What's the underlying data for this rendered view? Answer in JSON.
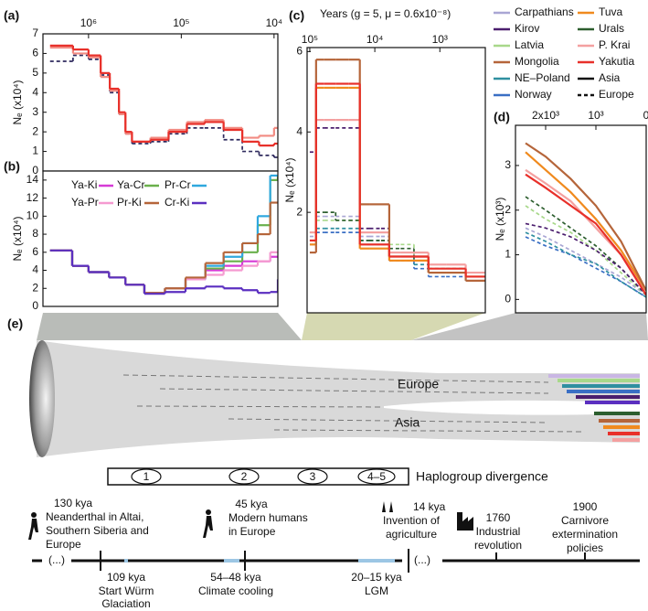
{
  "chart_data": [
    {
      "type": "line",
      "label": "(a)",
      "ylabel": "Nₑ (x10⁴)",
      "xscale": "log",
      "step": true,
      "xlim": [
        3100000,
        9100
      ],
      "xticks": [
        {
          "value": 1000000,
          "label": "10⁶"
        },
        {
          "value": 100000,
          "label": "10⁵"
        },
        {
          "value": 10000,
          "label": "10⁴"
        }
      ],
      "ylim": [
        0,
        7
      ],
      "yticks": [
        0,
        1,
        2,
        3,
        4,
        5,
        6,
        7
      ],
      "x": [
        2600000,
        1470000,
        1000000,
        740000,
        590000,
        470000,
        400000,
        340000,
        215000,
        137000,
        87000,
        56000,
        35000,
        22000,
        14500,
        10000
      ],
      "series": [
        {
          "color": "#2f2a5e",
          "dash": true,
          "values": [
            5.6,
            5.9,
            5.7,
            4.9,
            4.0,
            2.9,
            1.9,
            1.4,
            1.5,
            1.9,
            2.2,
            2.2,
            1.6,
            1.0,
            0.8,
            0.7
          ]
        },
        {
          "color": "#f28b82",
          "dash": false,
          "values": [
            6.3,
            6.0,
            5.8,
            4.8,
            4.1,
            2.9,
            1.9,
            1.5,
            1.7,
            2.1,
            2.5,
            2.6,
            2.2,
            1.7,
            1.8,
            2.2
          ]
        },
        {
          "color": "#e8302a",
          "dash": false,
          "values": [
            6.4,
            6.2,
            5.9,
            5.0,
            4.2,
            3.0,
            2.0,
            1.5,
            1.6,
            2.0,
            2.4,
            2.5,
            2.1,
            1.5,
            1.3,
            1.4
          ]
        }
      ]
    },
    {
      "type": "line",
      "label": "(b)",
      "ylabel": "Nₑ (x10⁴)",
      "xscale": "log",
      "step": true,
      "xlim": [
        3100000,
        9100
      ],
      "ylim": [
        0,
        15
      ],
      "yticks": [
        0,
        2,
        4,
        6,
        8,
        10,
        12,
        14
      ],
      "x": [
        2600000,
        1500000,
        1000000,
        600000,
        400000,
        250000,
        150000,
        90000,
        55000,
        35000,
        22000,
        15000,
        11000,
        9100
      ],
      "series": [
        {
          "name": "Ya-Ki",
          "color": "#d63ad6",
          "dash": false,
          "values": [
            6.2,
            4.5,
            3.8,
            3.2,
            2.4,
            1.5,
            2.0,
            3.0,
            4.0,
            4.5,
            5.0,
            5.0,
            5.5,
            5.5
          ]
        },
        {
          "name": "Ya-Cr",
          "color": "#6ab04c",
          "dash": false,
          "values": [
            6.2,
            4.5,
            3.8,
            3.2,
            2.4,
            1.5,
            2.0,
            3.0,
            4.2,
            5.0,
            6.0,
            9.0,
            14.0,
            14.5
          ]
        },
        {
          "name": "Pr-Cr",
          "color": "#2fa8de",
          "dash": false,
          "values": [
            6.2,
            4.5,
            3.8,
            3.2,
            2.4,
            1.5,
            2.0,
            3.0,
            4.5,
            5.5,
            7.0,
            10.0,
            14.5,
            14.5
          ]
        },
        {
          "name": "Ya-Pr",
          "color": "#f59ad0",
          "dash": false,
          "values": [
            6.2,
            4.5,
            3.8,
            3.2,
            2.4,
            1.5,
            2.0,
            3.0,
            3.5,
            4.0,
            4.5,
            5.0,
            6.0,
            6.0
          ]
        },
        {
          "name": "Pr-Ki",
          "color": "#b5653a",
          "dash": false,
          "values": [
            6.2,
            4.5,
            3.8,
            3.2,
            2.4,
            1.5,
            2.0,
            3.2,
            4.8,
            6.0,
            7.0,
            8.0,
            11.5,
            11.5
          ]
        },
        {
          "name": "Cr-Ki",
          "color": "#5b2fc0",
          "dash": false,
          "values": [
            6.2,
            4.5,
            3.8,
            3.2,
            2.4,
            1.4,
            1.6,
            2.0,
            2.2,
            2.0,
            1.8,
            1.5,
            1.6,
            3.0
          ]
        }
      ]
    },
    {
      "type": "line",
      "label": "(c)",
      "xlabel": "Years (g = 5, μ = 0.6x10⁻⁸)",
      "ylabel": "Nₑ (x10⁴)",
      "xscale": "log",
      "step": true,
      "xlim": [
        110000,
        200
      ],
      "xticks": [
        {
          "value": 100000,
          "label": "10⁵"
        },
        {
          "value": 10000,
          "label": "10⁴"
        },
        {
          "value": 1000,
          "label": "10³"
        }
      ],
      "ylim": [
        -0.5,
        6.1
      ],
      "yticks": [
        2,
        4,
        6
      ],
      "x": [
        100000,
        80000,
        60000,
        40000,
        25000,
        17000,
        12000,
        8000,
        6000,
        4000,
        2500,
        1500,
        800,
        400,
        200
      ],
      "series": [
        {
          "color": "#a9a6d4",
          "dash": true,
          "values": [
            1.4,
            1.9,
            1.9,
            1.9,
            1.9,
            1.4,
            1.4,
            1.4,
            1.0,
            1.0,
            0.8,
            0.6,
            0.6,
            0.4,
            0.4
          ]
        },
        {
          "color": "#3a6fc4",
          "dash": true,
          "values": [
            1.2,
            1.5,
            1.5,
            1.5,
            1.5,
            1.2,
            1.2,
            1.2,
            0.8,
            0.8,
            0.6,
            0.4,
            0.4,
            0.3,
            0.3
          ]
        },
        {
          "color": "#2f8fa0",
          "dash": true,
          "values": [
            1.3,
            1.6,
            1.6,
            1.6,
            1.6,
            1.3,
            1.3,
            1.3,
            0.9,
            0.9,
            0.7,
            0.5,
            0.5,
            0.3,
            0.3
          ]
        },
        {
          "color": "#a8d88a",
          "dash": true,
          "values": [
            1.5,
            1.8,
            1.8,
            1.8,
            1.8,
            1.5,
            1.5,
            1.5,
            1.2,
            1.2,
            0.9,
            0.6,
            0.6,
            0.4,
            0.4
          ]
        },
        {
          "color": "#2c5e2e",
          "dash": true,
          "values": [
            1.5,
            2.0,
            2.0,
            1.8,
            1.8,
            1.3,
            1.3,
            1.3,
            1.1,
            1.1,
            0.8,
            0.6,
            0.6,
            0.4,
            0.4
          ]
        },
        {
          "color": "#4b1e6e",
          "dash": true,
          "values": [
            3.5,
            4.1,
            4.1,
            4.1,
            4.1,
            1.6,
            1.6,
            1.6,
            0.8,
            0.8,
            0.8,
            0.5,
            0.5,
            0.4,
            0.4
          ]
        },
        {
          "color": "#f4a0a0",
          "dash": false,
          "values": [
            1.5,
            4.3,
            4.3,
            4.3,
            4.3,
            1.5,
            1.5,
            1.5,
            1.0,
            1.0,
            1.0,
            0.7,
            0.7,
            0.5,
            0.5
          ]
        },
        {
          "color": "#f08a1e",
          "dash": false,
          "values": [
            1.2,
            5.1,
            5.1,
            5.1,
            5.1,
            1.1,
            1.1,
            1.1,
            0.8,
            0.8,
            0.8,
            0.5,
            0.5,
            0.4,
            0.4
          ]
        },
        {
          "color": "#b5653a",
          "dash": false,
          "values": [
            1.0,
            5.8,
            5.8,
            5.8,
            5.8,
            2.2,
            2.2,
            2.2,
            0.9,
            0.9,
            0.9,
            0.5,
            0.5,
            0.3,
            0.3
          ]
        },
        {
          "color": "#e8302a",
          "dash": false,
          "values": [
            1.3,
            5.2,
            5.2,
            5.2,
            5.2,
            1.2,
            1.2,
            1.2,
            0.9,
            0.9,
            0.9,
            0.6,
            0.6,
            0.4,
            0.4
          ]
        }
      ]
    },
    {
      "type": "line",
      "label": "(d)",
      "ylabel": "Nₑ (x10³)",
      "xscale": "linear",
      "step": false,
      "xlim": [
        2600,
        0
      ],
      "xticks": [
        {
          "value": 2000,
          "label": "2x10³"
        },
        {
          "value": 1000,
          "label": "10³"
        },
        0
      ],
      "ylim": [
        -0.3,
        3.9
      ],
      "yticks": [
        0,
        1,
        2,
        3
      ],
      "x": [
        2400,
        2000,
        1500,
        1000,
        500,
        0
      ],
      "series": [
        {
          "color": "#a9a6d4",
          "dash": true,
          "values": [
            1.6,
            1.4,
            1.1,
            0.8,
            0.5,
            0.1
          ]
        },
        {
          "color": "#3a6fc4",
          "dash": true,
          "values": [
            1.4,
            1.2,
            1.0,
            0.7,
            0.4,
            0.05
          ]
        },
        {
          "color": "#2f8fa0",
          "dash": true,
          "values": [
            1.5,
            1.3,
            1.0,
            0.8,
            0.4,
            0.05
          ]
        },
        {
          "color": "#a8d88a",
          "dash": true,
          "values": [
            2.1,
            1.8,
            1.5,
            1.1,
            0.6,
            0.1
          ]
        },
        {
          "color": "#2c5e2e",
          "dash": true,
          "values": [
            2.3,
            2.0,
            1.6,
            1.2,
            0.7,
            0.1
          ]
        },
        {
          "color": "#4b1e6e",
          "dash": true,
          "values": [
            1.7,
            1.6,
            1.4,
            1.1,
            0.7,
            0.1
          ]
        },
        {
          "color": "#f4a0a0",
          "dash": false,
          "values": [
            2.9,
            2.6,
            2.2,
            1.6,
            1.0,
            0.2
          ]
        },
        {
          "color": "#e8302a",
          "dash": false,
          "values": [
            2.8,
            2.5,
            2.1,
            1.7,
            1.0,
            0.1
          ]
        },
        {
          "color": "#f08a1e",
          "dash": false,
          "values": [
            3.3,
            2.9,
            2.4,
            1.8,
            1.1,
            0.2
          ]
        },
        {
          "color": "#b5653a",
          "dash": false,
          "values": [
            3.5,
            3.2,
            2.7,
            2.1,
            1.3,
            0.2
          ]
        }
      ]
    }
  ],
  "legend": {
    "items": [
      {
        "name": "Carpathians",
        "color": "#a9a6d4",
        "dash": false
      },
      {
        "name": "Kirov",
        "color": "#4b1e6e",
        "dash": false
      },
      {
        "name": "Latvia",
        "color": "#a8d88a",
        "dash": false
      },
      {
        "name": "Mongolia",
        "color": "#b5653a",
        "dash": false
      },
      {
        "name": "NE–Poland",
        "color": "#2f8fa0",
        "dash": false
      },
      {
        "name": "Norway",
        "color": "#3a6fc4",
        "dash": false
      },
      {
        "name": "Tuva",
        "color": "#f08a1e",
        "dash": false
      },
      {
        "name": "Urals",
        "color": "#2c5e2e",
        "dash": false
      },
      {
        "name": "P. Krai",
        "color": "#f4a0a0",
        "dash": false
      },
      {
        "name": "Yakutia",
        "color": "#e8302a",
        "dash": false
      },
      {
        "name": "Asia",
        "color": "#111111",
        "dash": false
      },
      {
        "name": "Europe",
        "color": "#111111",
        "dash": true
      }
    ]
  },
  "diagram": {
    "label": "(e)",
    "europe": "Europe",
    "asia": "Asia",
    "haplogroups": [
      "1",
      "2",
      "3",
      "4–5"
    ],
    "haplogroup_title": "Haplogroup divergence"
  },
  "timeline": {
    "breaks": [
      "(...)",
      "(...)"
    ],
    "above": [
      {
        "date": "130 kya",
        "lines": [
          "Neanderthal in Altai,",
          "Southern Siberia and",
          "Europe"
        ]
      },
      {
        "date": "45 kya",
        "lines": [
          "Modern humans",
          "in Europe"
        ]
      },
      {
        "date": "14 kya",
        "lines": [
          "Invention of",
          "agriculture"
        ]
      },
      {
        "date": "1760",
        "lines": [
          "Industrial",
          "revolution"
        ]
      },
      {
        "date": "1900",
        "lines": [
          "Carnivore",
          "extermination",
          "policies"
        ]
      }
    ],
    "below": [
      {
        "date": "109 kya",
        "lines": [
          "Start Würm",
          "Glaciation"
        ]
      },
      {
        "date": "54–48 kya",
        "lines": [
          "Climate cooling"
        ]
      },
      {
        "date": "20–15 kya",
        "lines": [
          "LGM"
        ]
      }
    ]
  }
}
